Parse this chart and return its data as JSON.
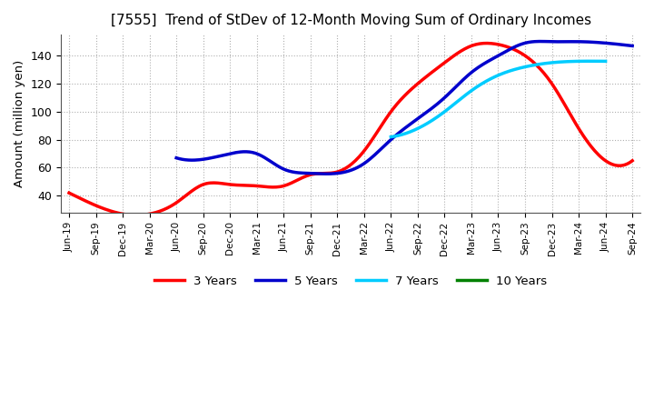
{
  "title": "[7555]  Trend of StDev of 12-Month Moving Sum of Ordinary Incomes",
  "ylabel": "Amount (million yen)",
  "ylim": [
    28,
    155
  ],
  "yticks": [
    40,
    60,
    80,
    100,
    120,
    140
  ],
  "background_color": "#ffffff",
  "grid_color": "#b0b0b0",
  "x_labels": [
    "Jun-19",
    "Sep-19",
    "Dec-19",
    "Mar-20",
    "Jun-20",
    "Sep-20",
    "Dec-20",
    "Mar-21",
    "Jun-21",
    "Sep-21",
    "Dec-21",
    "Mar-22",
    "Jun-22",
    "Sep-22",
    "Dec-22",
    "Mar-23",
    "Jun-23",
    "Sep-23",
    "Dec-23",
    "Mar-24",
    "Jun-24",
    "Sep-24"
  ],
  "series": {
    "3 Years": {
      "color": "#ff0000",
      "data": [
        42,
        33,
        27,
        27,
        35,
        48,
        48,
        47,
        47,
        55,
        57,
        72,
        100,
        120,
        135,
        147,
        148,
        140,
        120,
        88,
        65,
        65
      ]
    },
    "5 Years": {
      "color": "#0000cc",
      "data": [
        null,
        null,
        null,
        null,
        67,
        66,
        70,
        70,
        59,
        56,
        56,
        63,
        80,
        95,
        110,
        128,
        140,
        149,
        150,
        150,
        149,
        147
      ]
    },
    "7 Years": {
      "color": "#00ccff",
      "data": [
        null,
        null,
        null,
        null,
        null,
        null,
        null,
        null,
        null,
        null,
        null,
        null,
        82,
        88,
        100,
        115,
        126,
        132,
        135,
        136,
        136,
        null
      ]
    },
    "10 Years": {
      "color": "#008000",
      "data": [
        null,
        null,
        null,
        null,
        null,
        null,
        null,
        null,
        null,
        null,
        null,
        null,
        null,
        null,
        null,
        null,
        null,
        null,
        null,
        null,
        null,
        null
      ]
    }
  },
  "legend_labels": [
    "3 Years",
    "5 Years",
    "7 Years",
    "10 Years"
  ],
  "legend_colors": [
    "#ff0000",
    "#0000cc",
    "#00ccff",
    "#008000"
  ],
  "linewidth": 2.5
}
